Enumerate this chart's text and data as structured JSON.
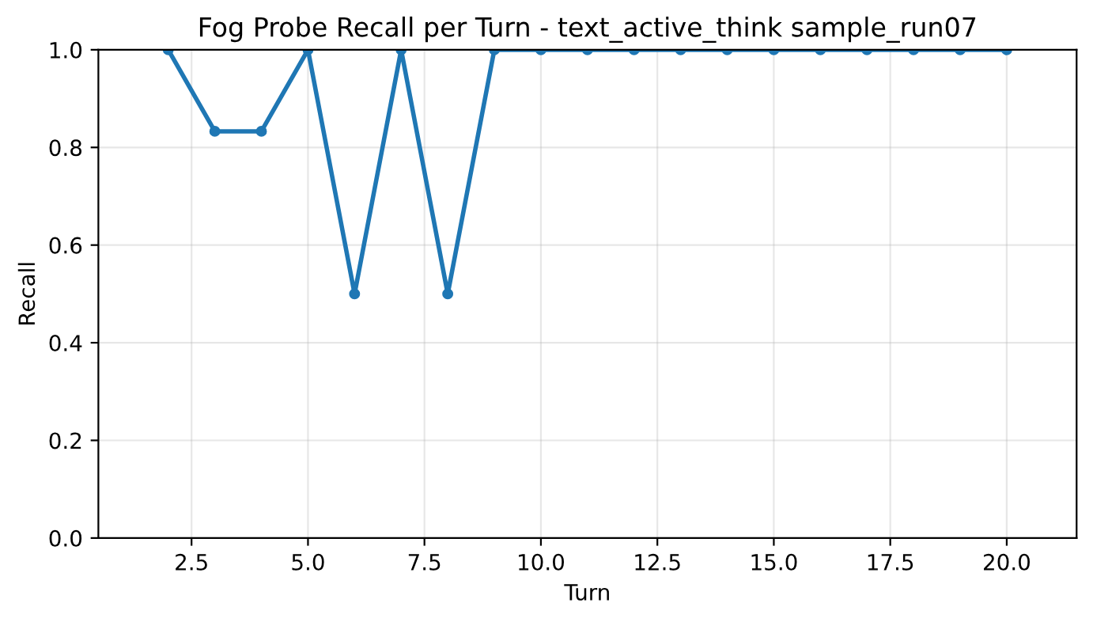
{
  "chart_data": {
    "type": "line",
    "title": "Fog Probe Recall per Turn - text_active_think sample_run07",
    "xlabel": "Turn",
    "ylabel": "Recall",
    "x": [
      2,
      3,
      4,
      5,
      6,
      7,
      8,
      9,
      10,
      11,
      12,
      13,
      14,
      15,
      16,
      17,
      18,
      19,
      20
    ],
    "series": [
      {
        "color": "#1f77b4",
        "values": [
          1,
          0.833,
          0.833,
          1,
          0.5,
          1,
          0.5,
          1,
          1,
          1,
          1,
          1,
          1,
          1,
          1,
          1,
          1,
          1,
          1
        ]
      }
    ],
    "xlim": [
      0.5,
      21.5
    ],
    "xticks": [
      2.5,
      {
        "value": 5,
        "label": "5.0"
      },
      7.5,
      {
        "value": 10,
        "label": "10.0"
      },
      12.5,
      {
        "value": 15,
        "label": "15.0"
      },
      17.5,
      {
        "value": 20,
        "label": "20.0"
      }
    ],
    "ylim": [
      0,
      1
    ],
    "yticks": [
      {
        "value": 0,
        "label": "0.0"
      },
      0.2,
      0.4,
      0.6,
      0.8,
      {
        "value": 1,
        "label": "1.0"
      }
    ],
    "grid": true,
    "marker": "circle",
    "line_style": "solid"
  }
}
